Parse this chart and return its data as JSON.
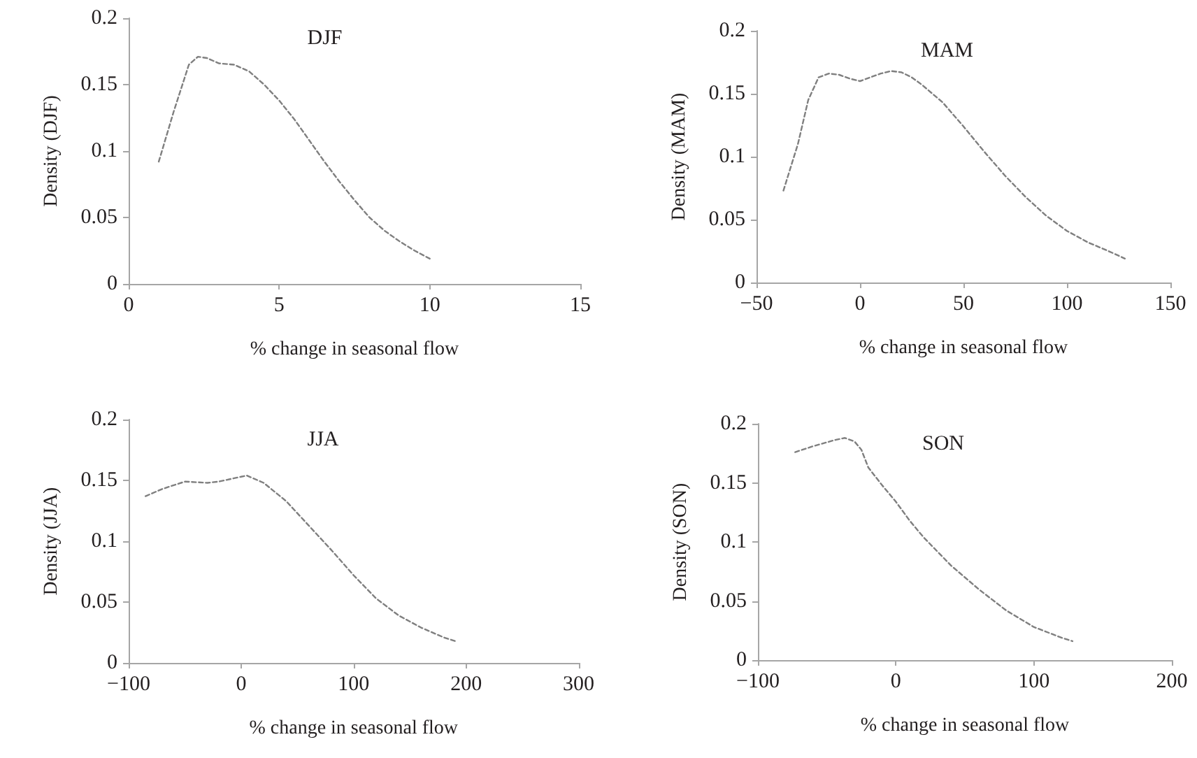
{
  "chart_data": [
    {
      "type": "line",
      "title": "DJF",
      "xlabel": "% change in seasonal flow",
      "ylabel": "Density (DJF)",
      "xlim": [
        0,
        15
      ],
      "xticks": [
        0,
        5,
        10,
        15
      ],
      "ylim": [
        0,
        0.2
      ],
      "yticks": [
        0,
        0.05,
        0.1,
        0.15,
        0.2
      ],
      "grid": false,
      "legend": false,
      "marker": "none",
      "line_style": "dashed",
      "series": [
        {
          "color": "#7f7f7f",
          "x": [
            1,
            1.5,
            2,
            2.3,
            2.6,
            3,
            3.5,
            4,
            4.5,
            5,
            5.5,
            6,
            6.5,
            7,
            7.5,
            8,
            8.5,
            9,
            9.5,
            10
          ],
          "values": [
            0.092,
            0.13,
            0.165,
            0.171,
            0.17,
            0.166,
            0.165,
            0.16,
            0.15,
            0.138,
            0.124,
            0.108,
            0.092,
            0.077,
            0.063,
            0.05,
            0.04,
            0.032,
            0.025,
            0.019
          ]
        }
      ]
    },
    {
      "type": "line",
      "title": "MAM",
      "xlabel": "% change in seasonal flow",
      "ylabel": "Density (MAM)",
      "xlim": [
        -50,
        150
      ],
      "xticks": [
        -50,
        0,
        50,
        100,
        150
      ],
      "ylim": [
        0,
        0.2
      ],
      "yticks": [
        0,
        0.05,
        0.1,
        0.15,
        0.2
      ],
      "grid": false,
      "legend": false,
      "marker": "none",
      "line_style": "dashed",
      "series": [
        {
          "color": "#7f7f7f",
          "x": [
            -37,
            -30,
            -25,
            -20,
            -15,
            -10,
            -5,
            0,
            5,
            10,
            15,
            20,
            25,
            30,
            40,
            50,
            60,
            70,
            80,
            90,
            100,
            110,
            120,
            128
          ],
          "values": [
            0.073,
            0.11,
            0.145,
            0.163,
            0.166,
            0.165,
            0.162,
            0.16,
            0.163,
            0.166,
            0.168,
            0.167,
            0.163,
            0.157,
            0.143,
            0.124,
            0.104,
            0.085,
            0.068,
            0.053,
            0.041,
            0.032,
            0.025,
            0.019
          ]
        }
      ]
    },
    {
      "type": "line",
      "title": "JJA",
      "xlabel": "% change in seasonal flow",
      "ylabel": "Density (JJA)",
      "xlim": [
        -100,
        300
      ],
      "xticks": [
        -100,
        0,
        100,
        200,
        300
      ],
      "ylim": [
        0,
        0.2
      ],
      "yticks": [
        0,
        0.05,
        0.1,
        0.15,
        0.2
      ],
      "grid": false,
      "legend": false,
      "marker": "none",
      "line_style": "dashed",
      "series": [
        {
          "color": "#7f7f7f",
          "x": [
            -85,
            -70,
            -50,
            -30,
            -20,
            -10,
            0,
            5,
            20,
            40,
            60,
            80,
            100,
            120,
            140,
            160,
            180,
            190
          ],
          "values": [
            0.137,
            0.143,
            0.149,
            0.148,
            0.149,
            0.151,
            0.153,
            0.154,
            0.148,
            0.133,
            0.113,
            0.093,
            0.072,
            0.053,
            0.039,
            0.029,
            0.021,
            0.018
          ]
        }
      ]
    },
    {
      "type": "line",
      "title": "SON",
      "xlabel": "% change in seasonal flow",
      "ylabel": "Density (SON)",
      "xlim": [
        -100,
        200
      ],
      "xticks": [
        -100,
        0,
        100,
        200
      ],
      "ylim": [
        0,
        0.2
      ],
      "yticks": [
        0,
        0.05,
        0.1,
        0.15,
        0.2
      ],
      "grid": false,
      "legend": false,
      "marker": "none",
      "line_style": "dashed",
      "series": [
        {
          "color": "#7f7f7f",
          "x": [
            -73,
            -60,
            -45,
            -37,
            -30,
            -25,
            -20,
            -10,
            0,
            10,
            20,
            40,
            60,
            80,
            100,
            120,
            128
          ],
          "values": [
            0.176,
            0.181,
            0.186,
            0.188,
            0.185,
            0.178,
            0.163,
            0.148,
            0.134,
            0.118,
            0.104,
            0.08,
            0.06,
            0.042,
            0.028,
            0.019,
            0.016
          ]
        }
      ]
    }
  ]
}
